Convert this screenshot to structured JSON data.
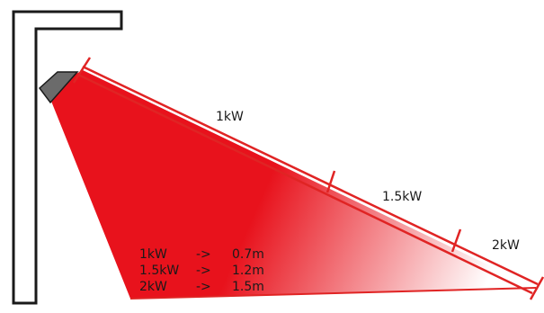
{
  "diagram": {
    "colors": {
      "bracket_stroke": "#1a1a1a",
      "heater_fill": "#6b6b6b",
      "beam_red": "#e8121c",
      "ruler_red": "#e02424"
    },
    "scale_labels": [
      "1kW",
      "1.5kW",
      "2kW"
    ],
    "table": [
      {
        "power": "1kW",
        "arrow": "->",
        "distance": "0.7m"
      },
      {
        "power": "1.5kW",
        "arrow": "->",
        "distance": "1.2m"
      },
      {
        "power": "2kW",
        "arrow": "->",
        "distance": "1.5m"
      }
    ]
  }
}
